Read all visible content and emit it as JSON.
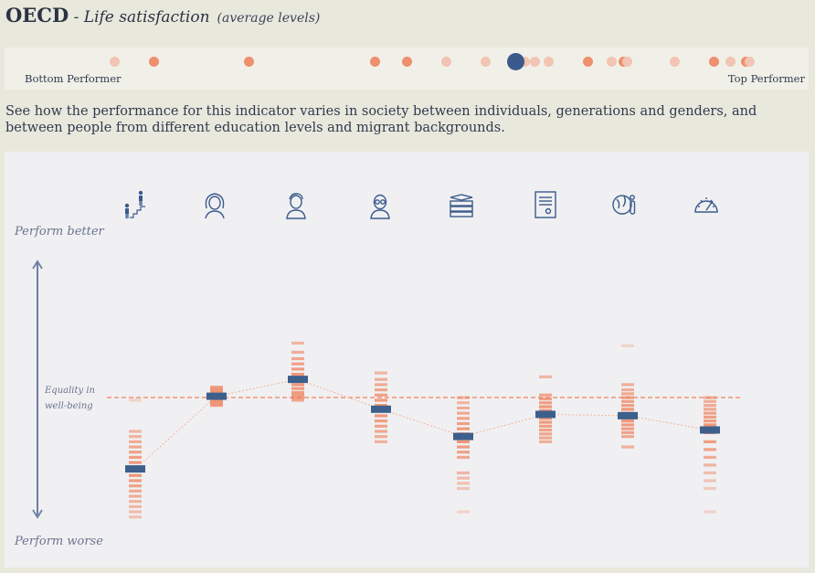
{
  "header": {
    "org": "OECD",
    "separator": " - Life satisfaction",
    "subtitle": "(average levels)"
  },
  "ranking": {
    "left_label": "Bottom Performer",
    "right_label": "Top Performer",
    "country_ranks": [
      0.13,
      0.18,
      0.3,
      0.46,
      0.5,
      0.55,
      0.6,
      0.65,
      0.663,
      0.68,
      0.73,
      0.76,
      0.775,
      0.78,
      0.84,
      0.89,
      0.91,
      0.93,
      0.935
    ],
    "strong_ranks": [
      0.18,
      0.3,
      0.46,
      0.5,
      0.73,
      0.775,
      0.89,
      0.93
    ],
    "selected_rank": 0.638,
    "colors": {
      "dot": "#f2c4b3",
      "dot_strong": "#ee8f6d",
      "selected": "#3b5a8c"
    }
  },
  "description": "See how the performance for this indicator varies in society between individuals, generations and genders, and between people from different education levels and migrant backgrounds.",
  "chart_data": {
    "type": "scatter",
    "y_axis_top_label": "Perform better",
    "y_axis_bottom_label": "Perform worse",
    "equality_label": "Equality in well-being",
    "equality_value": 0,
    "ylim": [
      -1,
      1
    ],
    "groups": [
      {
        "icon": "inequality-icon",
        "mean": -0.55,
        "ticks": [
          -0.02,
          -0.26,
          -0.3,
          -0.34,
          -0.38,
          -0.42,
          -0.46,
          -0.5,
          -0.55,
          -0.6,
          -0.64,
          -0.68,
          -0.72,
          -0.76,
          -0.8,
          -0.84,
          -0.88,
          -0.92
        ]
      },
      {
        "icon": "woman-icon",
        "mean": 0.01,
        "ticks": [
          0.08,
          0.06,
          0.04,
          0.02,
          0.0,
          -0.02,
          -0.04,
          -0.06
        ]
      },
      {
        "icon": "young-man-icon",
        "mean": 0.14,
        "ticks": [
          0.42,
          0.35,
          0.3,
          0.26,
          0.22,
          0.18,
          0.14,
          0.1,
          0.07,
          0.04,
          0.02,
          0.0,
          -0.02
        ]
      },
      {
        "icon": "elderly-icon",
        "mean": -0.09,
        "ticks": [
          0.19,
          0.14,
          0.1,
          0.06,
          0.02,
          -0.02,
          -0.06,
          -0.1,
          -0.14,
          -0.18,
          -0.22,
          -0.26,
          -0.3,
          -0.34
        ]
      },
      {
        "icon": "books-icon",
        "mean": -0.3,
        "ticks": [
          0.0,
          -0.04,
          -0.08,
          -0.12,
          -0.16,
          -0.2,
          -0.24,
          -0.28,
          -0.34,
          -0.38,
          -0.42,
          -0.46,
          -0.58,
          -0.62,
          -0.66,
          -0.7,
          -0.88
        ]
      },
      {
        "icon": "diploma-icon",
        "mean": -0.13,
        "ticks": [
          0.16,
          0.02,
          -0.01,
          -0.04,
          -0.07,
          -0.1,
          -0.13,
          -0.16,
          -0.19,
          -0.22,
          -0.25,
          -0.28,
          -0.31,
          -0.34
        ]
      },
      {
        "icon": "migrant-icon",
        "mean": -0.14,
        "ticks": [
          0.4,
          0.1,
          0.06,
          0.03,
          0.0,
          -0.03,
          -0.06,
          -0.09,
          -0.12,
          -0.15,
          -0.18,
          -0.21,
          -0.24,
          -0.27,
          -0.3,
          -0.38
        ]
      },
      {
        "icon": "gauge-icon",
        "mean": -0.25,
        "ticks": [
          0.0,
          -0.03,
          -0.06,
          -0.09,
          -0.12,
          -0.15,
          -0.18,
          -0.21,
          -0.24,
          -0.27,
          -0.34,
          -0.4,
          -0.46,
          -0.52,
          -0.58,
          -0.64,
          -0.7,
          -0.88
        ]
      }
    ],
    "colors": {
      "tick": "#ef7a52",
      "mean": "#3c5f8c",
      "equality": "#ef8060",
      "connector": "#f1b49b",
      "axis": "#6e7fa3"
    }
  }
}
